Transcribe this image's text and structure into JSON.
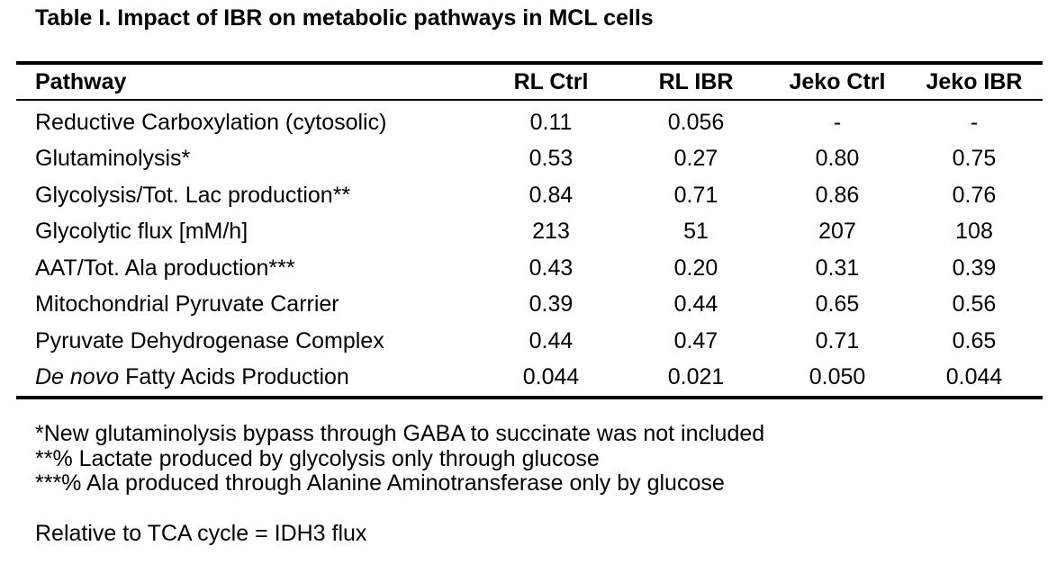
{
  "title": "Table I. Impact of IBR on metabolic pathways in MCL cells",
  "table": {
    "headers": [
      "Pathway",
      "RL Ctrl",
      "RL IBR",
      "Jeko Ctrl",
      "Jeko IBR"
    ],
    "rows": [
      {
        "pathway_italic": "",
        "pathway": "Reductive Carboxylation (cytosolic)",
        "values": [
          "0.11",
          "0.056",
          "-",
          "-"
        ]
      },
      {
        "pathway_italic": "",
        "pathway": "Glutaminolysis*",
        "values": [
          "0.53",
          "0.27",
          "0.80",
          "0.75"
        ]
      },
      {
        "pathway_italic": "",
        "pathway": "Glycolysis/Tot. Lac production**",
        "values": [
          "0.84",
          "0.71",
          "0.86",
          "0.76"
        ]
      },
      {
        "pathway_italic": "",
        "pathway": "Glycolytic flux [mM/h]",
        "values": [
          "213",
          "51",
          "207",
          "108"
        ]
      },
      {
        "pathway_italic": "",
        "pathway": "AAT/Tot. Ala production***",
        "values": [
          "0.43",
          "0.20",
          "0.31",
          "0.39"
        ]
      },
      {
        "pathway_italic": "",
        "pathway": "Mitochondrial Pyruvate Carrier",
        "values": [
          "0.39",
          "0.44",
          "0.65",
          "0.56"
        ]
      },
      {
        "pathway_italic": "",
        "pathway": "Pyruvate Dehydrogenase Complex",
        "values": [
          "0.44",
          "0.47",
          "0.71",
          "0.65"
        ]
      },
      {
        "pathway_italic": "De novo",
        "pathway": " Fatty Acids Production",
        "values": [
          "0.044",
          "0.021",
          "0.050",
          "0.044"
        ]
      }
    ]
  },
  "footnotes": [
    "*New glutaminolysis bypass through GABA to succinate was not included",
    "**% Lactate produced by glycolysis only through glucose",
    "***% Ala produced through Alanine Aminotransferase only by glucose"
  ],
  "relative_note": "Relative to TCA cycle = IDH3 flux"
}
